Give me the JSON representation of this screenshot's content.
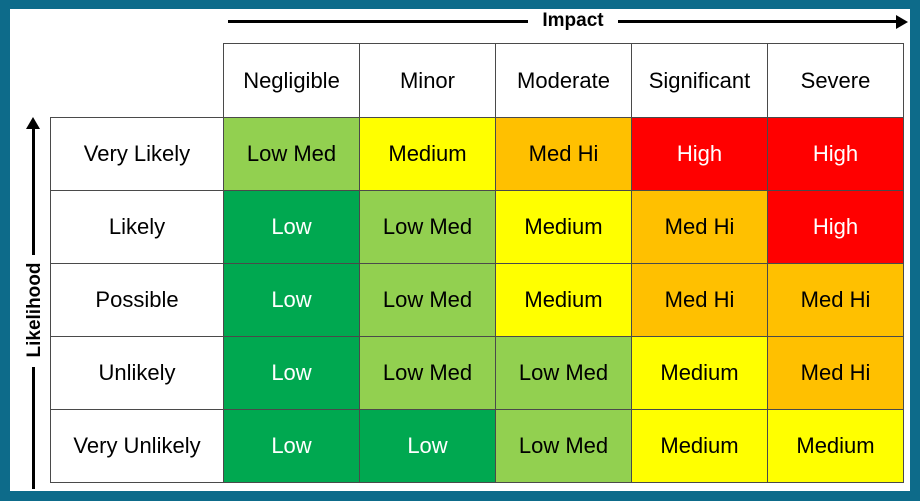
{
  "axes": {
    "impact_label": "Impact",
    "likelihood_label": "Likelihood"
  },
  "impact_levels": [
    "Negligible",
    "Minor",
    "Moderate",
    "Significant",
    "Severe"
  ],
  "likelihood_levels": [
    "Very Likely",
    "Likely",
    "Possible",
    "Unlikely",
    "Very Unlikely"
  ],
  "matrix": [
    [
      "Low Med",
      "Medium",
      "Med Hi",
      "High",
      "High"
    ],
    [
      "Low",
      "Low Med",
      "Medium",
      "Med Hi",
      "High"
    ],
    [
      "Low",
      "Low Med",
      "Medium",
      "Med Hi",
      "Med Hi"
    ],
    [
      "Low",
      "Low Med",
      "Low Med",
      "Medium",
      "Med Hi"
    ],
    [
      "Low",
      "Low",
      "Low Med",
      "Medium",
      "Medium"
    ]
  ],
  "colors": {
    "Low": "#00a850",
    "Low Med": "#92d050",
    "Medium": "#ffff00",
    "Med Hi": "#ffc000",
    "High": "#ff0000",
    "frame": "#0d6b8a"
  }
}
